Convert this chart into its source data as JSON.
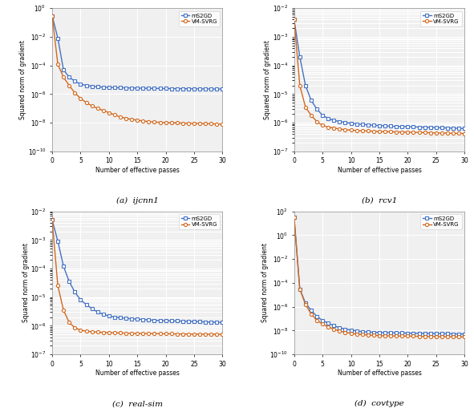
{
  "subplots": [
    {
      "title": "(a)  ijcnn1",
      "ylim_log": [
        -10,
        0
      ],
      "ylabel": "Squared norm of gradient",
      "xlabel": "Number of effective passes",
      "mS2GD": {
        "x": [
          0,
          1,
          2,
          3,
          4,
          5,
          6,
          7,
          8,
          9,
          10,
          11,
          12,
          13,
          14,
          15,
          16,
          17,
          18,
          19,
          20,
          21,
          22,
          23,
          24,
          25,
          26,
          27,
          28,
          29,
          30
        ],
        "y": [
          0.3,
          0.008,
          5e-05,
          1.5e-05,
          8e-06,
          5e-06,
          4e-06,
          3.5e-06,
          3.2e-06,
          3e-06,
          2.9e-06,
          2.8e-06,
          2.75e-06,
          2.7e-06,
          2.65e-06,
          2.6e-06,
          2.55e-06,
          2.5e-06,
          2.48e-06,
          2.45e-06,
          2.42e-06,
          2.4e-06,
          2.38e-06,
          2.36e-06,
          2.34e-06,
          2.32e-06,
          2.3e-06,
          2.28e-06,
          2.26e-06,
          2.24e-06,
          2.22e-06
        ]
      },
      "VM_SVRG": {
        "x": [
          0,
          1,
          2,
          3,
          4,
          5,
          6,
          7,
          8,
          9,
          10,
          11,
          12,
          13,
          14,
          15,
          16,
          17,
          18,
          19,
          20,
          21,
          22,
          23,
          24,
          25,
          26,
          27,
          28,
          29,
          30
        ],
        "y": [
          0.3,
          0.00012,
          1.5e-05,
          4e-06,
          1.2e-06,
          5e-07,
          2.5e-07,
          1.5e-07,
          1e-07,
          7e-08,
          5e-08,
          3.5e-08,
          2.5e-08,
          2e-08,
          1.7e-08,
          1.5e-08,
          1.3e-08,
          1.2e-08,
          1.1e-08,
          1.05e-08,
          1e-08,
          9.8e-09,
          9.5e-09,
          9.3e-09,
          9.1e-09,
          8.9e-09,
          8.7e-09,
          8.5e-09,
          8.3e-09,
          8.1e-09,
          7.9e-09
        ]
      }
    },
    {
      "title": "(b)  rcv1",
      "ylim_log": [
        -7,
        -2
      ],
      "ylabel": "Squared norm of gradient",
      "xlabel": "Number of effective passes",
      "mS2GD": {
        "x": [
          0,
          1,
          2,
          3,
          4,
          5,
          6,
          7,
          8,
          9,
          10,
          11,
          12,
          13,
          14,
          15,
          16,
          17,
          18,
          19,
          20,
          21,
          22,
          23,
          24,
          25,
          26,
          27,
          28,
          29,
          30
        ],
        "y": [
          0.004,
          0.0002,
          2e-05,
          6e-06,
          3e-06,
          1.8e-06,
          1.4e-06,
          1.2e-06,
          1.1e-06,
          1e-06,
          9.5e-07,
          9e-07,
          8.7e-07,
          8.4e-07,
          8.1e-07,
          7.9e-07,
          7.7e-07,
          7.5e-07,
          7.4e-07,
          7.3e-07,
          7.2e-07,
          7.1e-07,
          7e-07,
          6.9e-07,
          6.8e-07,
          6.7e-07,
          6.6e-07,
          6.5e-07,
          6.4e-07,
          6.3e-07,
          6.2e-07
        ]
      },
      "VM_SVRG": {
        "x": [
          0,
          1,
          2,
          3,
          4,
          5,
          6,
          7,
          8,
          9,
          10,
          11,
          12,
          13,
          14,
          15,
          16,
          17,
          18,
          19,
          20,
          21,
          22,
          23,
          24,
          25,
          26,
          27,
          28,
          29,
          30
        ],
        "y": [
          0.004,
          2e-05,
          3.5e-06,
          1.8e-06,
          1.1e-06,
          8e-07,
          7e-07,
          6.5e-07,
          6e-07,
          5.7e-07,
          5.5e-07,
          5.3e-07,
          5.2e-07,
          5.1e-07,
          5e-07,
          4.9e-07,
          4.85e-07,
          4.8e-07,
          4.75e-07,
          4.7e-07,
          4.65e-07,
          4.6e-07,
          4.55e-07,
          4.5e-07,
          4.45e-07,
          4.4e-07,
          4.35e-07,
          4.3e-07,
          4.25e-07,
          4.2e-07,
          4.15e-07
        ]
      }
    },
    {
      "title": "(c)  real-sim",
      "ylim_log": [
        -7,
        -2
      ],
      "ylabel": "Squared norm of gradient",
      "xlabel": "Number of effective passes",
      "mS2GD": {
        "x": [
          0,
          1,
          2,
          3,
          4,
          5,
          6,
          7,
          8,
          9,
          10,
          11,
          12,
          13,
          14,
          15,
          16,
          17,
          18,
          19,
          20,
          21,
          22,
          23,
          24,
          25,
          26,
          27,
          28,
          29,
          30
        ],
        "y": [
          0.005,
          0.0009,
          0.00012,
          3.5e-05,
          1.5e-05,
          8e-06,
          5.5e-06,
          4e-06,
          3e-06,
          2.5e-06,
          2.2e-06,
          2e-06,
          1.9e-06,
          1.8e-06,
          1.75e-06,
          1.7e-06,
          1.65e-06,
          1.6e-06,
          1.55e-06,
          1.52e-06,
          1.5e-06,
          1.48e-06,
          1.46e-06,
          1.44e-06,
          1.42e-06,
          1.4e-06,
          1.38e-06,
          1.36e-06,
          1.34e-06,
          1.32e-06,
          1.3e-06
        ]
      },
      "VM_SVRG": {
        "x": [
          0,
          1,
          2,
          3,
          4,
          5,
          6,
          7,
          8,
          9,
          10,
          11,
          12,
          13,
          14,
          15,
          16,
          17,
          18,
          19,
          20,
          21,
          22,
          23,
          24,
          25,
          26,
          27,
          28,
          29,
          30
        ],
        "y": [
          0.005,
          2.5e-05,
          3.5e-06,
          1.3e-06,
          8.5e-07,
          7e-07,
          6.5e-07,
          6.2e-07,
          6e-07,
          5.85e-07,
          5.75e-07,
          5.65e-07,
          5.58e-07,
          5.52e-07,
          5.47e-07,
          5.42e-07,
          5.38e-07,
          5.34e-07,
          5.3e-07,
          5.27e-07,
          5.24e-07,
          5.21e-07,
          5.18e-07,
          5.15e-07,
          5.12e-07,
          5.09e-07,
          5.07e-07,
          5.05e-07,
          5.03e-07,
          5.01e-07,
          4.99e-07
        ]
      }
    },
    {
      "title": "(d)  covtype",
      "ylim_log": [
        -10,
        2
      ],
      "ylabel": "Squared norm of gradient",
      "xlabel": "Number of effective passes",
      "mS2GD": {
        "x": [
          0,
          1,
          2,
          3,
          4,
          5,
          6,
          7,
          8,
          9,
          10,
          11,
          12,
          13,
          14,
          15,
          16,
          17,
          18,
          19,
          20,
          21,
          22,
          23,
          24,
          25,
          26,
          27,
          28,
          29,
          30
        ],
        "y": [
          30,
          3e-05,
          2e-06,
          5e-07,
          1.5e-07,
          7e-08,
          4e-08,
          2.5e-08,
          1.7e-08,
          1.3e-08,
          1.1e-08,
          9e-09,
          8e-09,
          7.5e-09,
          7e-09,
          6.8e-09,
          6.6e-09,
          6.4e-09,
          6.2e-09,
          6.1e-09,
          6e-09,
          5.9e-09,
          5.8e-09,
          5.7e-09,
          5.6e-09,
          5.5e-09,
          5.4e-09,
          5.3e-09,
          5.2e-09,
          5.1e-09,
          5e-09
        ]
      },
      "VM_SVRG": {
        "x": [
          0,
          1,
          2,
          3,
          4,
          5,
          6,
          7,
          8,
          9,
          10,
          11,
          12,
          13,
          14,
          15,
          16,
          17,
          18,
          19,
          20,
          21,
          22,
          23,
          24,
          25,
          26,
          27,
          28,
          29,
          30
        ],
        "y": [
          30,
          3e-05,
          1.5e-06,
          2.5e-07,
          7e-08,
          3.5e-08,
          2e-08,
          1.3e-08,
          9e-09,
          7e-09,
          5.8e-09,
          5e-09,
          4.5e-09,
          4.2e-09,
          3.9e-09,
          3.7e-09,
          3.6e-09,
          3.5e-09,
          3.45e-09,
          3.4e-09,
          3.35e-09,
          3.3e-09,
          3.25e-09,
          3.2e-09,
          3.15e-09,
          3.1e-09,
          3.05e-09,
          3e-09,
          2.95e-09,
          2.9e-09,
          2.85e-09
        ]
      }
    }
  ],
  "color_mS2GD": "#4472C4",
  "color_VM_SVRG": "#D2691E",
  "marker_mS2GD": "s",
  "marker_VM_SVRG": "o",
  "legend_labels": [
    "mS2GD",
    "VM-SVRG"
  ],
  "xlabel": "Number of effective passes",
  "ylabel": "Squared norm of gradient",
  "markersize": 3.0,
  "linewidth": 1.0,
  "bg_color": "#f0f0f0",
  "grid_color": "white"
}
